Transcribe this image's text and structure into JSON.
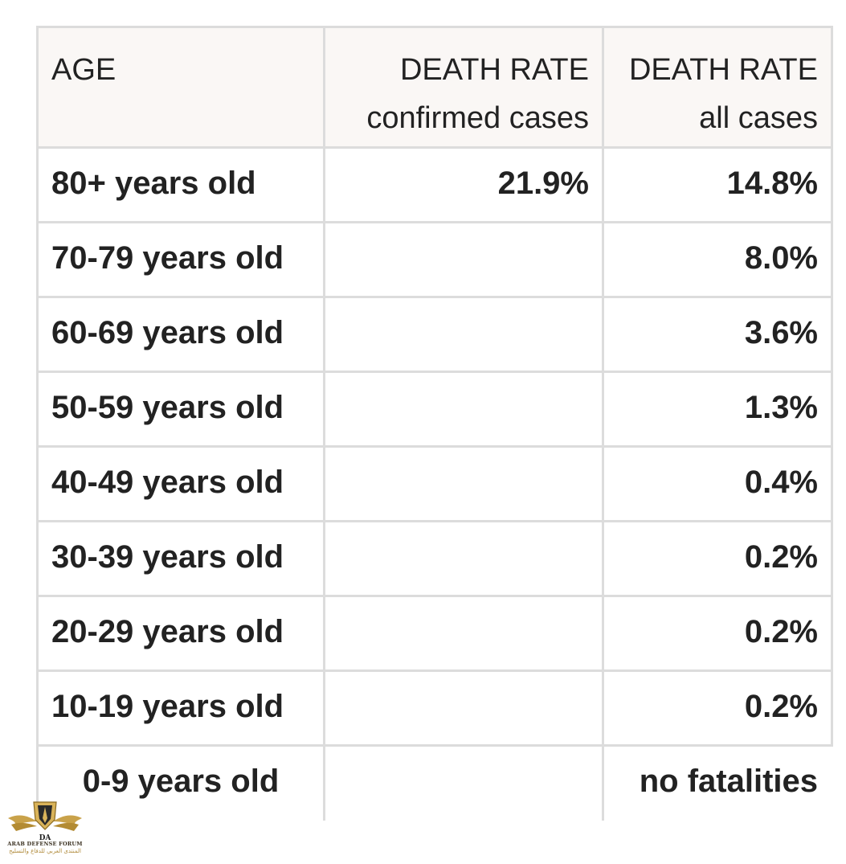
{
  "table": {
    "headers": {
      "age": "AGE",
      "confirmed_line1": "DEATH RATE",
      "confirmed_line2": "confirmed cases",
      "all_line1": "DEATH RATE",
      "all_line2": "all cases"
    },
    "rows": [
      {
        "age": "80+ years old",
        "confirmed": "21.9%",
        "all": "14.8%"
      },
      {
        "age": "70-79 years old",
        "confirmed": "",
        "all": "8.0%"
      },
      {
        "age": "60-69 years old",
        "confirmed": "",
        "all": "3.6%"
      },
      {
        "age": "50-59 years old",
        "confirmed": "",
        "all": "1.3%"
      },
      {
        "age": "40-49 years old",
        "confirmed": "",
        "all": "0.4%"
      },
      {
        "age": "30-39 years old",
        "confirmed": "",
        "all": "0.2%"
      },
      {
        "age": "20-29 years old",
        "confirmed": "",
        "all": "0.2%"
      },
      {
        "age": "10-19 years old",
        "confirmed": "",
        "all": "0.2%"
      },
      {
        "age": "0-9 years old",
        "confirmed": "",
        "all": "no fatalities"
      }
    ]
  },
  "watermark": {
    "monogram": "DA",
    "name": "ARAB DEFENSE FORUM",
    "arabic": "المنتدى العربي للدفاع والتسليح",
    "icon": "winged-shield-logo"
  },
  "colors": {
    "header_bg": "#faf7f5",
    "border": "#dcdcdc",
    "text": "#222222",
    "logo_gold": "#c9a24a"
  }
}
